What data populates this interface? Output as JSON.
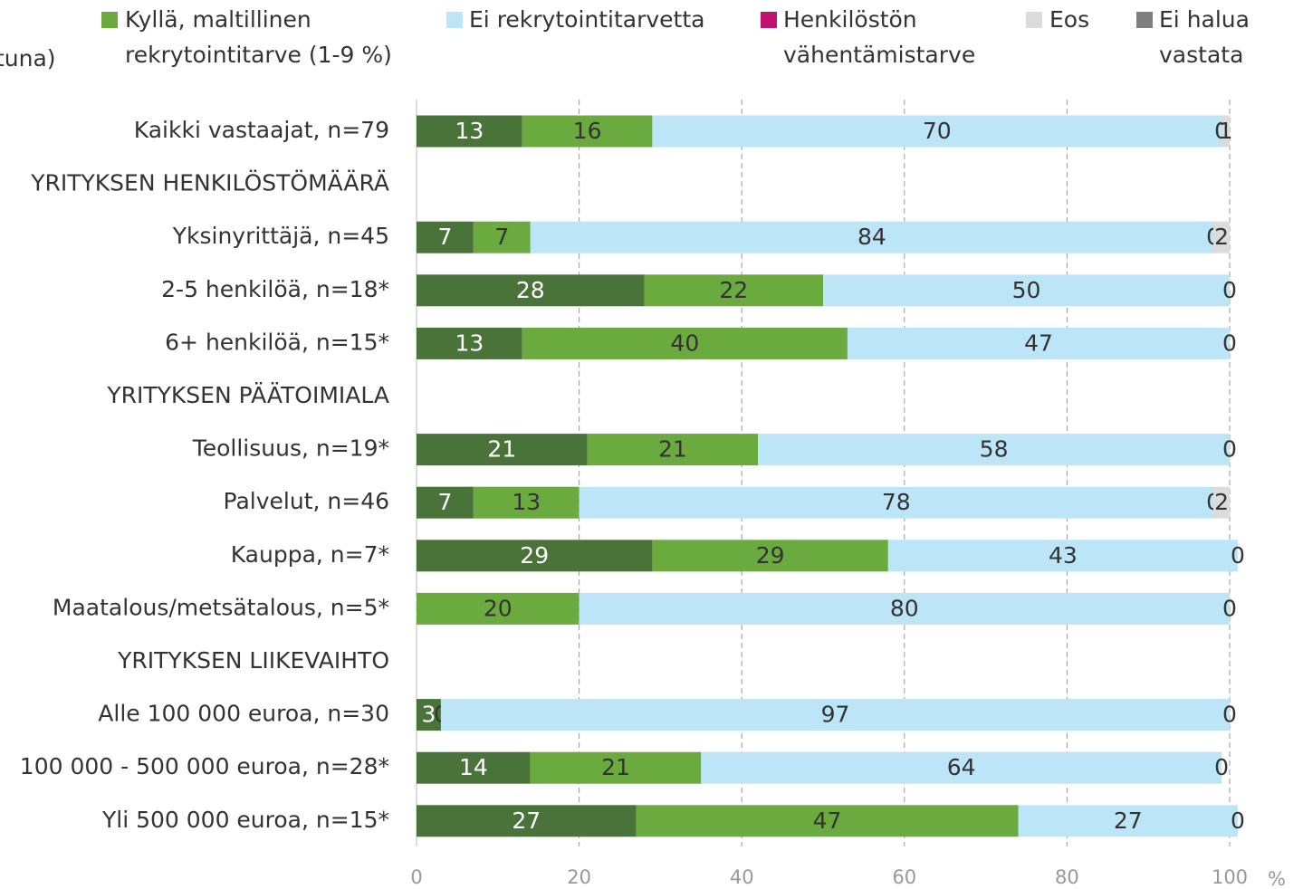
{
  "chart_data": {
    "type": "stacked_bar_horizontal",
    "x_label": "%",
    "categories": [
      "Kaikki vastaajat, n=79",
      "YRITYKSEN HENKILÖSTÖMÄÄRÄ",
      "Yksinyrittäjä, n=45",
      "2-5 henkilöä, n=18*",
      "6+ henkilöä, n=15*",
      "YRITYKSEN PÄÄTOIMIALA",
      "Teollisuus, n=19*",
      "Palvelut, n=46",
      "Kauppa, n=7*",
      "Maatalous/metsätalous, n=5*",
      "YRITYKSEN LIIKEVAIHTO",
      "Alle 100 000 euroa, n=30",
      "100 000 - 500 000 euroa, n=28*",
      "Yli 500 000 euroa, n=15*"
    ],
    "series": [
      {
        "name": "tuna)",
        "color": "#4a7339",
        "values": [
          13,
          null,
          7,
          28,
          13,
          null,
          21,
          7,
          29,
          0,
          null,
          3,
          14,
          27
        ]
      },
      {
        "name": "Kyllä, maltillinen rekrytointitarve (1-9 %)",
        "color": "#6aaa3f",
        "values": [
          16,
          null,
          7,
          22,
          40,
          null,
          21,
          13,
          29,
          20,
          null,
          0,
          21,
          47
        ]
      },
      {
        "name": "Ei rekrytointitarvetta",
        "color": "#bde5f8",
        "values": [
          70,
          null,
          84,
          50,
          47,
          null,
          58,
          78,
          43,
          80,
          null,
          97,
          64,
          27
        ]
      },
      {
        "name": "Henkilöstön vähentämistarve",
        "color": "#c0136f",
        "values": [
          0,
          null,
          0,
          0,
          0,
          null,
          0,
          0,
          0,
          0,
          null,
          0,
          0,
          0
        ]
      },
      {
        "name": "Eos",
        "color": "#dcdcdc",
        "values": [
          1,
          null,
          2,
          null,
          null,
          null,
          null,
          2,
          null,
          null,
          null,
          null,
          null,
          null
        ]
      },
      {
        "name": "Ei halua vastata",
        "color": "#7f7f7f",
        "values": [
          null,
          null,
          null,
          null,
          null,
          null,
          null,
          null,
          null,
          null,
          null,
          null,
          null,
          null
        ]
      }
    ],
    "xlim": [
      0,
      100
    ],
    "xticks": [
      0,
      20,
      40,
      60,
      80,
      100
    ],
    "grid": true
  }
}
